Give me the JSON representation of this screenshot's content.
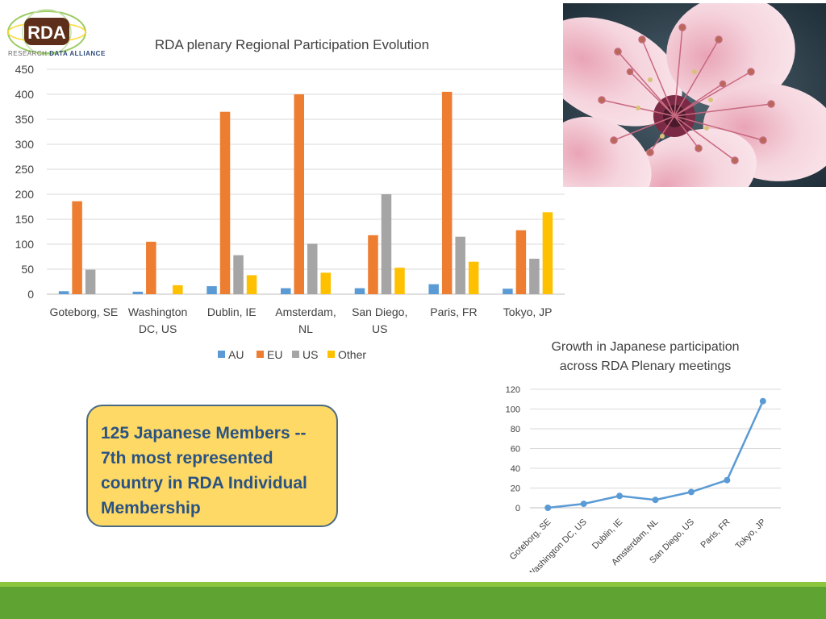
{
  "logo": {
    "mark": "RDA",
    "line1": "RESEARCH",
    "line2": "DATA ALLIANCE",
    "icon": "rda-globe-logo"
  },
  "photo": {
    "subject": "pink-cherry-blossom"
  },
  "callout": {
    "text": "125 Japanese Members -- 7th most represented country in RDA Individual Membership",
    "lines": [
      "125 Japanese Members --",
      "7th most represented",
      "country in RDA Individual",
      "Membership"
    ]
  },
  "colors": {
    "AU": "#5b9bd5",
    "EU": "#ed7d31",
    "US": "#a5a5a5",
    "Other": "#ffc000",
    "line": "#5b9bd5",
    "callout_bg": "#ffd966",
    "callout_text": "#2a5382",
    "footer": "#5fa332"
  },
  "chart_data": [
    {
      "type": "bar",
      "title": "RDA plenary Regional Participation Evolution",
      "categories": [
        "Goteborg, SE",
        "Washington DC, US",
        "Dublin, IE",
        "Amsterdam, NL",
        "San Diego, US",
        "Paris, FR",
        "Tokyo, JP"
      ],
      "category_lines": [
        [
          "Goteborg, SE"
        ],
        [
          "Washington",
          "DC, US"
        ],
        [
          "Dublin, IE"
        ],
        [
          "Amsterdam,",
          "NL"
        ],
        [
          "San Diego,",
          "US"
        ],
        [
          "Paris, FR"
        ],
        [
          "Tokyo, JP"
        ]
      ],
      "series": [
        {
          "name": "AU",
          "values": [
            6,
            5,
            16,
            12,
            12,
            20,
            11
          ]
        },
        {
          "name": "EU",
          "values": [
            186,
            105,
            365,
            400,
            118,
            405,
            128
          ]
        },
        {
          "name": "US",
          "values": [
            49,
            0,
            78,
            101,
            200,
            115,
            71
          ]
        },
        {
          "name": "Other",
          "values": [
            0,
            18,
            38,
            43,
            53,
            65,
            164
          ]
        }
      ],
      "ylim": [
        0,
        450
      ],
      "yticks": [
        0,
        50,
        100,
        150,
        200,
        250,
        300,
        350,
        400,
        450
      ],
      "grid": true,
      "legend": "bottom"
    },
    {
      "type": "line",
      "title": "Growth in Japanese participation across RDA Plenary meetings",
      "title_lines": [
        "Growth in Japanese  participation",
        "across RDA Plenary meetings"
      ],
      "categories": [
        "Goteborg, SE",
        "Washington DC, US",
        "Dublin, IE",
        "Amsterdam, NL",
        "San Diego, US",
        "Paris, FR",
        "Tokyo, JP"
      ],
      "series": [
        {
          "values": [
            0,
            4,
            12,
            8,
            16,
            28,
            108
          ]
        }
      ],
      "ylim": [
        0,
        120
      ],
      "yticks": [
        0,
        20,
        40,
        60,
        80,
        100,
        120
      ],
      "grid": true
    }
  ]
}
